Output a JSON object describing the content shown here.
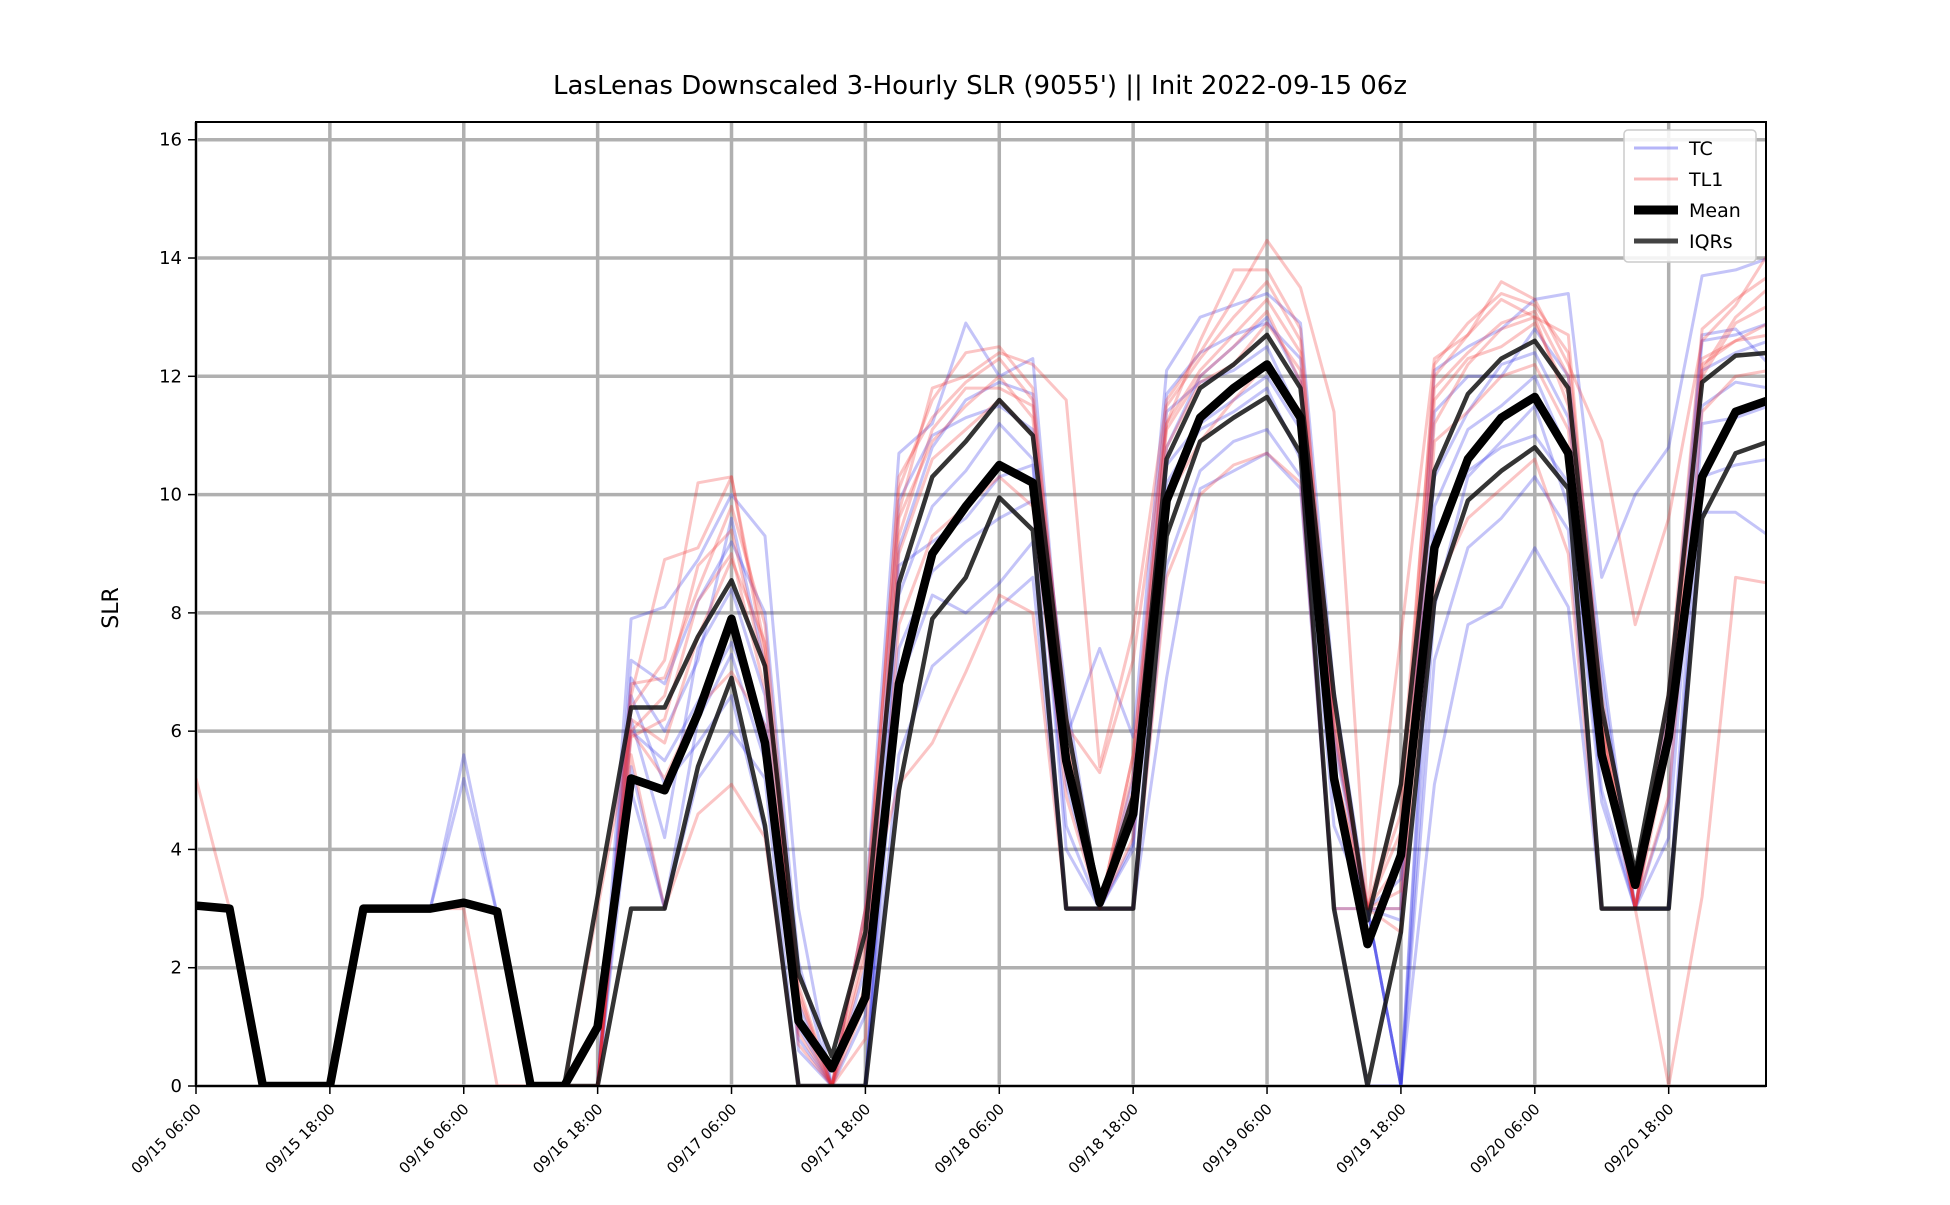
{
  "chart_data": {
    "type": "line",
    "title": "LasLenas Downscaled 3-Hourly SLR (9055') || Init 2022-09-15 06z",
    "xlabel": "",
    "ylabel": "SLR",
    "ylim": [
      0,
      16.3
    ],
    "yticks": [
      "0",
      "2",
      "4",
      "6",
      "8",
      "10",
      "12",
      "14",
      "16"
    ],
    "xticks": [
      "09/15 06:00",
      "09/15 18:00",
      "09/16 06:00",
      "09/16 18:00",
      "09/17 06:00",
      "09/17 18:00",
      "09/18 06:00",
      "09/18 18:00",
      "09/19 06:00",
      "09/19 18:00",
      "09/20 06:00",
      "09/20 18:00"
    ],
    "grid": true,
    "legend_position": "top-right",
    "legend": [
      {
        "label": "TC",
        "color": "#5a5af0",
        "style": "thin"
      },
      {
        "label": "TL1",
        "color": "#f06a6a",
        "style": "thin"
      },
      {
        "label": "Mean",
        "color": "#000000",
        "style": "thick"
      },
      {
        "label": "IQRs",
        "color": "#222222",
        "style": "medium"
      }
    ],
    "x": [
      "09/15 06:00",
      "09/15 09:00",
      "09/15 12:00",
      "09/15 15:00",
      "09/15 18:00",
      "09/15 21:00",
      "09/16 00:00",
      "09/16 03:00",
      "09/16 06:00",
      "09/16 09:00",
      "09/16 12:00",
      "09/16 15:00",
      "09/16 18:00",
      "09/16 21:00",
      "09/17 00:00",
      "09/17 03:00",
      "09/17 06:00",
      "09/17 09:00",
      "09/17 12:00",
      "09/17 15:00",
      "09/17 18:00",
      "09/17 21:00",
      "09/18 00:00",
      "09/18 03:00",
      "09/18 06:00",
      "09/18 09:00",
      "09/18 12:00",
      "09/18 15:00",
      "09/18 18:00",
      "09/18 21:00",
      "09/19 00:00",
      "09/19 03:00",
      "09/19 06:00",
      "09/19 09:00",
      "09/19 12:00",
      "09/19 15:00",
      "09/19 18:00",
      "09/19 21:00",
      "09/20 00:00",
      "09/20 03:00",
      "09/20 06:00",
      "09/20 09:00",
      "09/20 12:00",
      "09/20 15:00",
      "09/20 18:00",
      "09/20 21:00",
      "09/21 00:00",
      "09/21 03:00"
    ],
    "series": [
      {
        "name": "Mean",
        "color": "#000000",
        "values": [
          3.05,
          3.0,
          0,
          0,
          0,
          3.0,
          3.0,
          3.0,
          3.1,
          2.95,
          0,
          0,
          1.0,
          5.2,
          5.0,
          6.3,
          7.9,
          5.8,
          1.1,
          0.3,
          1.5,
          6.8,
          9.0,
          9.8,
          10.5,
          10.2,
          5.5,
          3.1,
          4.6,
          9.9,
          11.3,
          11.8,
          12.2,
          11.3,
          5.2,
          2.4,
          3.9,
          9.1,
          10.6,
          11.3,
          11.65,
          10.7,
          5.6,
          3.4,
          5.9,
          10.3,
          11.4,
          11.6
        ]
      },
      {
        "name": "IQRs",
        "color": "#111111",
        "values": [
          3.05,
          3.0,
          0,
          0,
          0,
          3.0,
          3.0,
          3.0,
          3.1,
          2.95,
          0,
          0,
          3.2,
          6.4,
          6.4,
          7.6,
          8.55,
          7.1,
          1.9,
          0.5,
          2.6,
          8.5,
          10.3,
          10.9,
          11.6,
          11.0,
          6.2,
          3.1,
          4.9,
          10.6,
          11.8,
          12.2,
          12.7,
          11.8,
          6.6,
          2.8,
          5.1,
          10.4,
          11.7,
          12.3,
          12.6,
          11.8,
          6.4,
          3.6,
          6.6,
          11.9,
          12.35,
          12.4
        ]
      },
      {
        "name": "IQRs",
        "color": "#111111",
        "values": [
          3.05,
          3.0,
          0,
          0,
          0,
          3.0,
          3.0,
          3.0,
          3.1,
          2.95,
          0,
          0,
          0,
          3.0,
          3.0,
          5.4,
          6.9,
          4.4,
          0,
          0,
          0,
          5.0,
          7.9,
          8.6,
          9.95,
          9.4,
          3.0,
          3.0,
          3.0,
          9.3,
          10.9,
          11.3,
          11.65,
          10.7,
          3.0,
          0,
          2.6,
          8.2,
          9.9,
          10.4,
          10.8,
          10.1,
          3.0,
          3.0,
          3.0,
          9.6,
          10.7,
          10.9
        ]
      },
      {
        "name": "TC",
        "color": "#2a2ae6",
        "opacity": 0.28,
        "values": [
          3.05,
          3.0,
          0,
          0,
          0,
          3.0,
          3.0,
          3.0,
          5.6,
          2.9,
          0,
          0,
          0,
          7.9,
          8.1,
          8.9,
          10.0,
          9.3,
          3.0,
          0,
          3.0,
          10.7,
          11.2,
          12.9,
          12.0,
          12.3,
          5.9,
          7.4,
          5.9,
          12.1,
          13.0,
          13.2,
          13.4,
          12.9,
          6.7,
          3.0,
          3.0,
          12.1,
          12.5,
          12.8,
          13.3,
          13.4,
          8.6,
          10.0,
          10.8,
          13.7,
          13.8,
          14.0
        ]
      },
      {
        "name": "TC",
        "color": "#2a2ae6",
        "opacity": 0.28,
        "values": [
          3.05,
          3.0,
          0,
          0,
          0,
          3.0,
          3.0,
          3.0,
          5.2,
          2.9,
          0,
          0,
          0,
          6.9,
          6.0,
          7.2,
          9.6,
          7.1,
          1.4,
          0,
          1.2,
          9.1,
          10.8,
          11.6,
          11.9,
          11.7,
          5.1,
          3.0,
          4.5,
          10.8,
          12.0,
          12.5,
          13.0,
          11.9,
          5.8,
          3.0,
          3.5,
          10.3,
          11.4,
          12.2,
          12.4,
          11.3,
          6.9,
          3.0,
          6.5,
          12.7,
          12.8,
          12.2
        ]
      },
      {
        "name": "TC",
        "color": "#2a2ae6",
        "opacity": 0.28,
        "values": [
          3.05,
          3.0,
          0,
          0,
          0,
          3.0,
          3.0,
          3.0,
          3.1,
          2.95,
          0,
          0,
          0,
          5.4,
          3.0,
          6.2,
          7.3,
          5.5,
          1.0,
          0,
          0,
          6.8,
          8.3,
          8.0,
          8.5,
          9.2,
          3.0,
          3.0,
          3.0,
          10.2,
          11.1,
          11.4,
          11.8,
          10.6,
          4.4,
          3.0,
          0,
          8.1,
          10.3,
          10.9,
          11.5,
          9.8,
          4.8,
          3.0,
          3.0,
          11.2,
          11.3,
          11.5
        ]
      },
      {
        "name": "TC",
        "color": "#2a2ae6",
        "opacity": 0.28,
        "values": [
          3.05,
          3.0,
          0,
          0,
          0,
          3.0,
          3.0,
          3.0,
          3.1,
          2.95,
          0,
          0,
          0,
          6.6,
          5.1,
          5.8,
          6.6,
          4.3,
          0,
          0,
          0,
          5.6,
          7.1,
          7.6,
          8.1,
          8.6,
          3.0,
          3.0,
          3.0,
          6.9,
          10.1,
          10.4,
          10.7,
          10.1,
          3.0,
          0,
          0,
          5.1,
          7.8,
          8.1,
          9.1,
          8.1,
          3.0,
          3.0,
          3.0,
          9.7,
          9.7,
          9.3
        ]
      },
      {
        "name": "TC",
        "color": "#2a2ae6",
        "opacity": 0.28,
        "values": [
          3.05,
          3.0,
          0,
          0,
          0,
          3.0,
          3.0,
          3.0,
          3.1,
          2.95,
          0,
          0,
          0,
          6.2,
          4.2,
          7.4,
          8.4,
          6.6,
          0.6,
          0,
          0,
          8.3,
          9.8,
          10.4,
          11.2,
          10.6,
          4.0,
          3.0,
          4.1,
          11.4,
          11.9,
          12.1,
          12.5,
          11.3,
          5.1,
          3.0,
          0,
          9.8,
          11.1,
          11.5,
          12.0,
          10.7,
          5.6,
          3.0,
          4.8,
          12.1,
          12.4,
          12.6
        ]
      },
      {
        "name": "TC",
        "color": "#2a2ae6",
        "opacity": 0.28,
        "values": [
          3.05,
          3.0,
          0,
          0,
          0,
          3.0,
          3.0,
          3.0,
          3.1,
          2.95,
          0,
          0,
          0,
          5.0,
          3.0,
          5.2,
          6.0,
          5.2,
          0,
          0,
          0,
          7.4,
          8.7,
          9.2,
          9.6,
          9.9,
          3.0,
          3.0,
          3.0,
          8.8,
          10.4,
          10.9,
          11.1,
          10.3,
          3.0,
          3.0,
          0,
          7.2,
          9.1,
          9.6,
          10.3,
          9.4,
          3.0,
          3.0,
          3.0,
          10.3,
          10.5,
          10.6
        ]
      },
      {
        "name": "TC",
        "color": "#2a2ae6",
        "opacity": 0.28,
        "values": [
          3.05,
          3.0,
          0,
          0,
          0,
          3.0,
          3.0,
          3.0,
          3.1,
          2.95,
          0,
          0,
          0,
          7.2,
          6.8,
          8.2,
          9.2,
          8.0,
          2.1,
          0,
          2.0,
          9.9,
          11.0,
          11.3,
          11.5,
          11.1,
          6.6,
          3.0,
          5.2,
          11.7,
          12.4,
          12.7,
          12.9,
          12.3,
          6.0,
          3.0,
          2.8,
          11.4,
          12.0,
          12.0,
          12.8,
          12.0,
          7.2,
          3.0,
          6.0,
          12.6,
          12.7,
          12.9
        ]
      },
      {
        "name": "TC",
        "color": "#2a2ae6",
        "opacity": 0.28,
        "values": [
          3.05,
          3.0,
          0,
          0,
          0,
          3.0,
          3.0,
          3.0,
          3.1,
          2.95,
          0,
          0,
          0,
          6.0,
          5.5,
          6.5,
          7.5,
          6.1,
          0.8,
          0,
          0,
          8.8,
          9.2,
          9.6,
          10.3,
          10.5,
          4.4,
          3.0,
          4.0,
          10.5,
          11.2,
          11.6,
          12.0,
          11.1,
          4.9,
          3.0,
          0,
          9.3,
          10.4,
          10.8,
          11.0,
          10.2,
          5.0,
          3.0,
          4.2,
          11.5,
          11.9,
          11.8
        ]
      },
      {
        "name": "TL1",
        "color": "#ef2f2f",
        "opacity": 0.28,
        "values": [
          5.2,
          3.0,
          0,
          0,
          0,
          3.0,
          3.0,
          3.0,
          3.0,
          0,
          0,
          0,
          0,
          6.6,
          8.9,
          9.1,
          10.3,
          7.2,
          1.6,
          0,
          3.0,
          9.7,
          11.8,
          12.0,
          12.4,
          12.2,
          11.6,
          5.4,
          7.7,
          11.6,
          12.4,
          13.3,
          14.3,
          13.5,
          11.4,
          3.0,
          7.6,
          12.3,
          12.7,
          13.6,
          13.3,
          12.2,
          10.9,
          7.8,
          9.6,
          12.6,
          13.2,
          14.1
        ]
      },
      {
        "name": "TL1",
        "color": "#ef2f2f",
        "opacity": 0.28,
        "values": [
          3.05,
          3.0,
          0,
          0,
          0,
          3.0,
          3.0,
          3.0,
          3.1,
          2.95,
          0,
          0,
          0,
          6.4,
          7.2,
          10.2,
          10.3,
          7.4,
          1.1,
          0,
          2.8,
          10.1,
          11.6,
          12.4,
          12.5,
          11.8,
          6.1,
          5.3,
          7.2,
          11.2,
          12.6,
          13.8,
          13.8,
          12.8,
          5.9,
          3.0,
          5.0,
          12.0,
          12.7,
          13.3,
          13.0,
          12.7,
          6.3,
          3.0,
          6.3,
          12.1,
          13.0,
          13.5
        ]
      },
      {
        "name": "TL1",
        "color": "#ef2f2f",
        "opacity": 0.28,
        "values": [
          3.05,
          3.0,
          0,
          0,
          0,
          3.0,
          3.0,
          3.0,
          3.1,
          2.95,
          0,
          0,
          3.0,
          6.0,
          6.6,
          8.8,
          9.4,
          7.0,
          1.5,
          0,
          1.7,
          9.3,
          11.1,
          11.8,
          11.8,
          11.5,
          5.9,
          3.0,
          5.6,
          11.1,
          12.0,
          12.5,
          13.1,
          11.9,
          5.4,
          3.0,
          3.8,
          11.2,
          12.2,
          12.8,
          13.0,
          11.5,
          6.1,
          3.0,
          5.7,
          12.3,
          12.6,
          12.7
        ]
      },
      {
        "name": "TL1",
        "color": "#ef2f2f",
        "opacity": 0.28,
        "values": [
          3.05,
          3.0,
          0,
          0,
          0,
          3.0,
          3.0,
          3.0,
          3.1,
          2.95,
          0,
          0,
          0,
          5.6,
          3.0,
          4.6,
          5.1,
          4.2,
          0,
          0,
          3.0,
          5.1,
          5.8,
          7.0,
          8.3,
          8.0,
          3.0,
          3.0,
          3.0,
          8.6,
          10.0,
          10.5,
          10.7,
          10.2,
          3.0,
          3.0,
          3.0,
          8.4,
          9.6,
          10.1,
          10.6,
          9.0,
          3.0,
          3.0,
          0,
          3.2,
          8.6,
          8.5
        ]
      },
      {
        "name": "TL1",
        "color": "#ef2f2f",
        "opacity": 0.28,
        "values": [
          3.05,
          3.0,
          0,
          0,
          0,
          3.0,
          3.0,
          3.0,
          3.1,
          2.95,
          0,
          0,
          0,
          6.2,
          5.8,
          7.6,
          8.9,
          7.5,
          1.2,
          0,
          2.2,
          9.0,
          10.6,
          11.1,
          11.6,
          11.0,
          5.6,
          3.0,
          5.0,
          10.8,
          11.9,
          12.2,
          12.9,
          12.1,
          6.2,
          3.0,
          3.3,
          11.6,
          12.3,
          12.5,
          12.9,
          11.7,
          6.2,
          3.0,
          6.2,
          12.2,
          12.6,
          12.9
        ]
      },
      {
        "name": "TL1",
        "color": "#ef2f2f",
        "opacity": 0.28,
        "values": [
          3.05,
          3.0,
          0,
          0,
          0,
          3.0,
          3.0,
          3.0,
          3.1,
          2.95,
          0,
          0,
          0,
          5.9,
          6.2,
          8.2,
          9.0,
          6.7,
          0.9,
          0,
          1.4,
          9.6,
          10.9,
          11.5,
          12.0,
          11.3,
          5.8,
          3.0,
          5.3,
          11.2,
          12.1,
          12.7,
          13.3,
          12.4,
          6.1,
          3.0,
          4.3,
          11.8,
          12.4,
          12.9,
          13.1,
          12.0,
          6.0,
          3.0,
          6.0,
          12.0,
          12.9,
          13.2
        ]
      },
      {
        "name": "TL1",
        "color": "#ef2f2f",
        "opacity": 0.28,
        "values": [
          3.05,
          3.0,
          0,
          0,
          0,
          3.0,
          3.0,
          3.0,
          3.1,
          2.95,
          0,
          0,
          0,
          6.0,
          5.2,
          6.4,
          7.0,
          6.1,
          0.7,
          0,
          0.8,
          7.8,
          9.3,
          9.8,
          10.3,
          9.8,
          4.9,
          3.0,
          4.2,
          9.9,
          10.9,
          11.6,
          12.2,
          11.4,
          5.4,
          3.0,
          2.6,
          10.9,
          11.4,
          12.0,
          12.2,
          11.1,
          5.7,
          3.0,
          4.9,
          11.4,
          12.0,
          12.1
        ]
      },
      {
        "name": "TL1",
        "color": "#ef2f2f",
        "opacity": 0.28,
        "values": [
          3.05,
          3.0,
          0,
          0,
          0,
          3.0,
          3.0,
          3.0,
          3.1,
          2.95,
          0,
          0,
          0,
          6.8,
          6.9,
          8.4,
          9.8,
          7.8,
          1.7,
          0,
          2.4,
          10.3,
          11.3,
          11.9,
          12.3,
          11.6,
          6.3,
          3.0,
          5.6,
          11.5,
          12.3,
          13.0,
          13.6,
          12.6,
          6.4,
          3.0,
          4.6,
          12.2,
          12.9,
          13.4,
          13.2,
          12.4,
          6.6,
          3.0,
          6.7,
          12.8,
          13.3,
          13.7
        ]
      }
    ]
  }
}
